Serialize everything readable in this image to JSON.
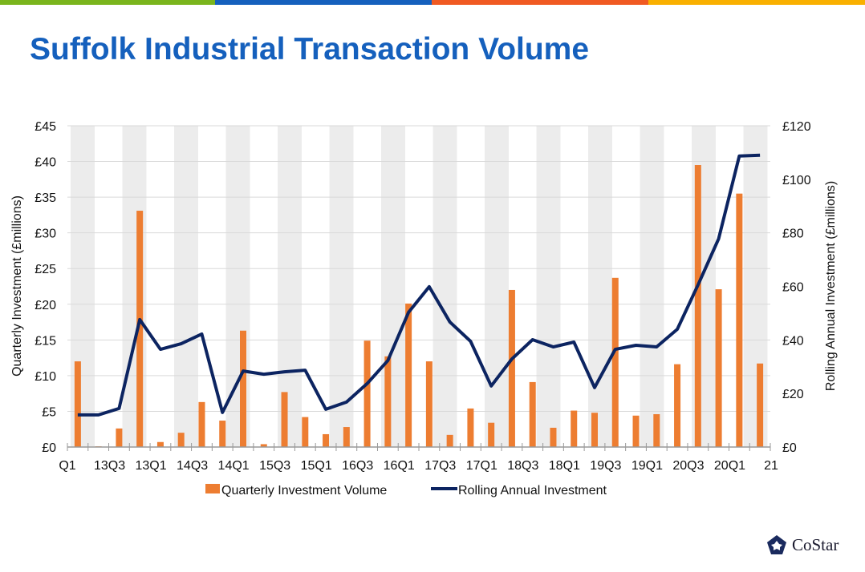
{
  "title": "Suffolk Industrial Transaction Volume",
  "brand": {
    "name": "CoStar",
    "tm": "™"
  },
  "colors": {
    "bar": "#ed7d31",
    "line": "#0c2461",
    "title": "#1560bd",
    "band": "#ececec",
    "top": [
      "#7ab51d",
      "#1560bd",
      "#f05a22",
      "#f9b000"
    ]
  },
  "chart_data": {
    "type": "bar+line",
    "title": "Suffolk Industrial Transaction Volume",
    "ylabel": "Quarterly Investment (£millions)",
    "y2label": "Rolling Annual Investment (£millions)",
    "ylim": [
      0,
      45
    ],
    "y2lim": [
      0,
      120
    ],
    "yticks": [
      "£0",
      "£5",
      "£10",
      "£15",
      "£20",
      "£25",
      "£30",
      "£35",
      "£40",
      "£45"
    ],
    "y2ticks": [
      "£0",
      "£20",
      "£40",
      "£60",
      "£80",
      "£100",
      "£120"
    ],
    "xtick_labels": [
      "Q1",
      "13Q3",
      "13Q1",
      "14Q3",
      "14Q1",
      "15Q3",
      "15Q1",
      "16Q3",
      "16Q1",
      "17Q3",
      "17Q1",
      "18Q3",
      "18Q1",
      "19Q3",
      "19Q1",
      "20Q3",
      "20Q1",
      "21"
    ],
    "series": [
      {
        "name": "Quarterly Investment Volume",
        "type": "bar",
        "axis": "left",
        "values": [
          12,
          0.1,
          2.6,
          33.1,
          0.7,
          2.0,
          6.3,
          3.7,
          16.3,
          0.4,
          7.7,
          4.2,
          1.8,
          2.8,
          14.9,
          12.7,
          20.1,
          12.0,
          1.7,
          5.4,
          3.4,
          22.0,
          9.1,
          2.7,
          5.1,
          4.8,
          23.7,
          4.4,
          4.6,
          11.6,
          39.5,
          22.1,
          35.5,
          11.7
        ]
      },
      {
        "name": "Rolling Annual Investment",
        "type": "line",
        "axis": "right",
        "values": [
          12,
          12,
          14.4,
          47.6,
          36.5,
          38.6,
          42.2,
          12.9,
          28.4,
          27.2,
          28.1,
          28.7,
          14.1,
          16.8,
          23.7,
          32.3,
          50.3,
          59.9,
          46.7,
          39.5,
          22.8,
          32.9,
          40.1,
          37.4,
          39.2,
          22.2,
          36.5,
          38.0,
          37.4,
          44.0,
          60.5,
          77.8,
          108.7,
          109.0
        ]
      }
    ],
    "legend": "bottom",
    "grid": true
  }
}
